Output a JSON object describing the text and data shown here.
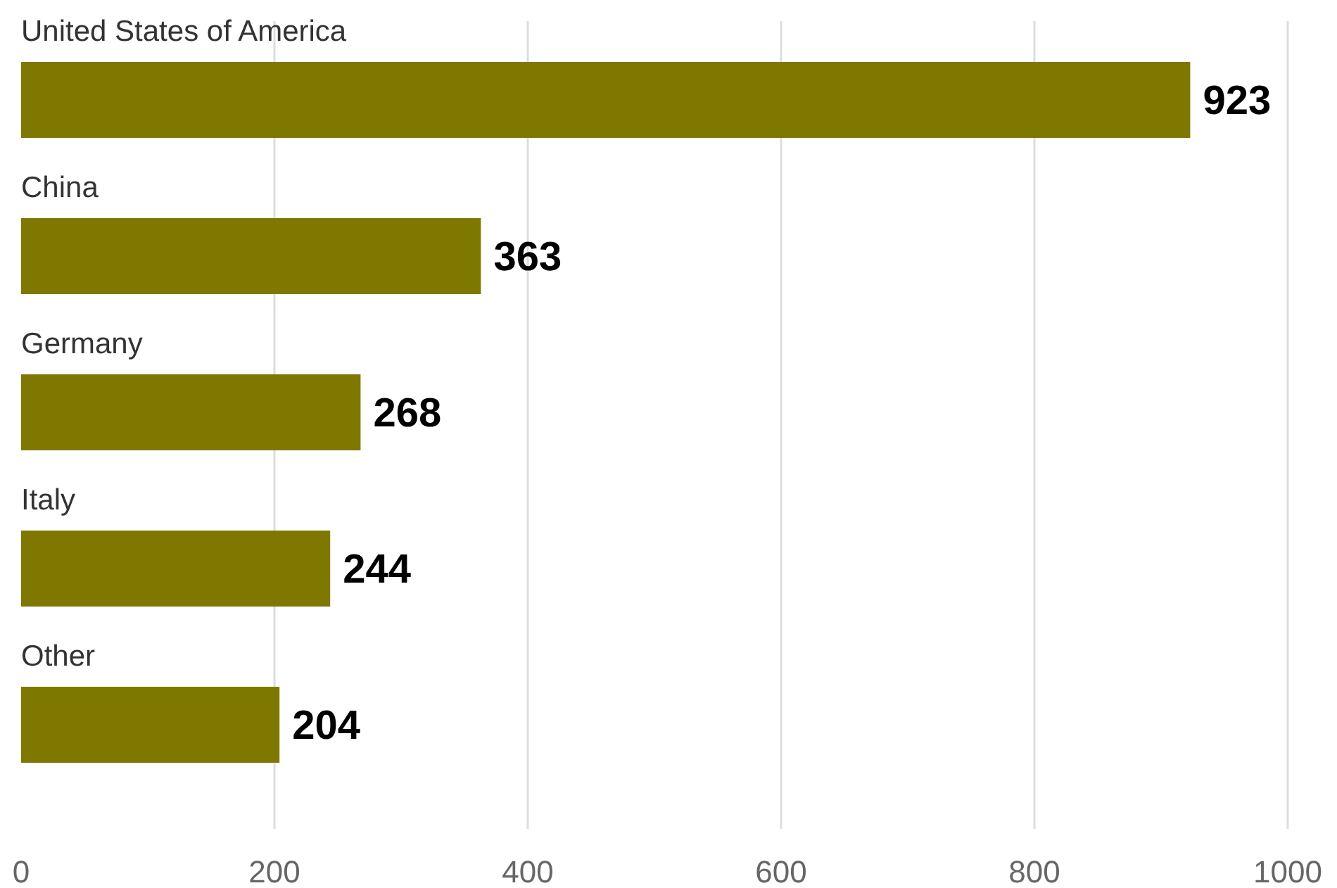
{
  "chart_data": {
    "type": "bar",
    "orientation": "horizontal",
    "categories": [
      "United States of America",
      "China",
      "Germany",
      "Italy",
      "Other"
    ],
    "values": [
      923,
      363,
      268,
      244,
      204
    ],
    "color": "#7f7800",
    "xlim": [
      0,
      1000
    ],
    "xticks": [
      0,
      200,
      400,
      600,
      800,
      1000
    ],
    "grid": "x",
    "data_labels": true
  }
}
